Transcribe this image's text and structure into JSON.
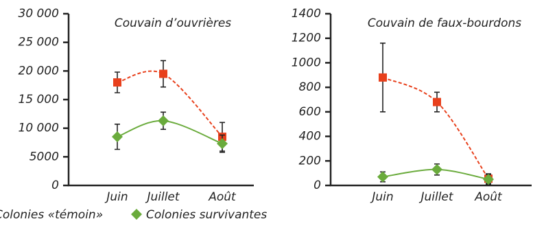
{
  "chart_data": [
    {
      "type": "line",
      "title": "Couvain d’ouvrières",
      "categories": [
        "Juin",
        "Juillet",
        "Août"
      ],
      "ylim": [
        0,
        30000
      ],
      "yticks": [
        0,
        5000,
        {
          "value": 10000,
          "label": "10 000"
        },
        {
          "value": 15000,
          "label": "15 000"
        },
        {
          "value": 20000,
          "label": "20 000"
        },
        {
          "value": 25000,
          "label": "25 000"
        },
        {
          "value": 30000,
          "label": "30 000"
        }
      ],
      "series": [
        {
          "name": "Colonies «témoin»",
          "color": "#e8401c",
          "dashed": true,
          "marker": "square",
          "values": [
            18000,
            19500,
            8500
          ],
          "errors": [
            1800,
            2300,
            2500
          ]
        },
        {
          "name": "Colonies survivantes",
          "color": "#6aab3c",
          "dashed": false,
          "marker": "diamond",
          "values": [
            8500,
            11300,
            7300
          ],
          "errors": [
            2200,
            1500,
            1500
          ]
        }
      ]
    },
    {
      "type": "line",
      "title": "Couvain de faux-bourdons",
      "categories": [
        "Juin",
        "Juillet",
        "Août"
      ],
      "ylim": [
        0,
        1400
      ],
      "yticks": [
        0,
        200,
        400,
        600,
        800,
        1000,
        1200,
        1400
      ],
      "series": [
        {
          "color": "#e8401c",
          "dashed": true,
          "marker": "square",
          "values": [
            880,
            680,
            55
          ],
          "errors": [
            280,
            80,
            40
          ]
        },
        {
          "color": "#6aab3c",
          "dashed": false,
          "marker": "diamond",
          "values": [
            70,
            130,
            50
          ],
          "errors": [
            40,
            45,
            40
          ]
        }
      ]
    }
  ]
}
